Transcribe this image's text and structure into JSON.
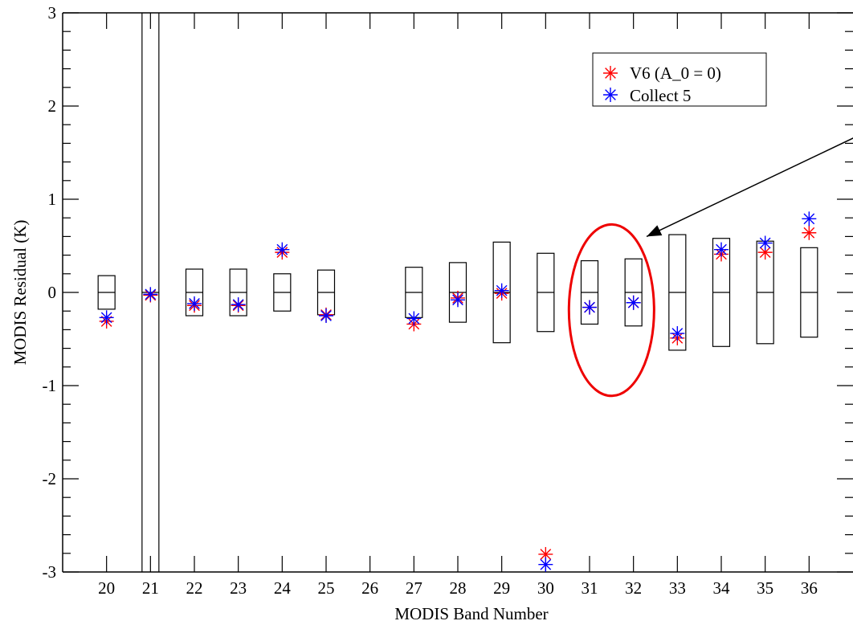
{
  "chart_data": {
    "type": "scatter",
    "xlabel": "MODIS Band Number",
    "ylabel": "MODIS Residual (K)",
    "xlim": [
      19.0,
      37.0
    ],
    "ylim": [
      -3,
      3
    ],
    "x_ticks": [
      "20",
      "21",
      "22",
      "23",
      "24",
      "25",
      "26",
      "27",
      "28",
      "29",
      "30",
      "31",
      "32",
      "33",
      "34",
      "35",
      "36"
    ],
    "y_ticks": [
      "-3",
      "-2",
      "-1",
      "0",
      "1",
      "2",
      "3"
    ],
    "legend_position": "top-right",
    "colors": {
      "v6": "#ff0000",
      "c5": "#0000ff",
      "highlight": "#ee0000",
      "frame": "#000000"
    },
    "series": [
      {
        "name": "V6 (A_0 = 0)",
        "marker": "asterisk",
        "points": [
          {
            "x": 20,
            "y": -0.31
          },
          {
            "x": 21,
            "y": -0.03
          },
          {
            "x": 22,
            "y": -0.14
          },
          {
            "x": 23,
            "y": -0.14
          },
          {
            "x": 24,
            "y": 0.43
          },
          {
            "x": 25,
            "y": -0.24
          },
          {
            "x": 27,
            "y": -0.34
          },
          {
            "x": 28,
            "y": -0.06
          },
          {
            "x": 29,
            "y": -0.01
          },
          {
            "x": 30,
            "y": -2.81
          },
          {
            "x": 31,
            "y": -0.16
          },
          {
            "x": 32,
            "y": -0.11
          },
          {
            "x": 33,
            "y": -0.49
          },
          {
            "x": 34,
            "y": 0.41
          },
          {
            "x": 35,
            "y": 0.43
          },
          {
            "x": 36,
            "y": 0.64
          }
        ]
      },
      {
        "name": "Collect 5",
        "marker": "asterisk",
        "points": [
          {
            "x": 20,
            "y": -0.27
          },
          {
            "x": 21,
            "y": -0.02
          },
          {
            "x": 22,
            "y": -0.12
          },
          {
            "x": 23,
            "y": -0.13
          },
          {
            "x": 24,
            "y": 0.46
          },
          {
            "x": 25,
            "y": -0.25
          },
          {
            "x": 27,
            "y": -0.28
          },
          {
            "x": 28,
            "y": -0.08
          },
          {
            "x": 29,
            "y": 0.02
          },
          {
            "x": 30,
            "y": -2.92
          },
          {
            "x": 31,
            "y": -0.16
          },
          {
            "x": 32,
            "y": -0.11
          },
          {
            "x": 33,
            "y": -0.44
          },
          {
            "x": 34,
            "y": 0.46
          },
          {
            "x": 35,
            "y": 0.53
          },
          {
            "x": 36,
            "y": 0.79
          }
        ]
      }
    ],
    "uncertainty_boxes": [
      {
        "x": 20,
        "half_height": 0.18
      },
      {
        "x": 21,
        "half_height": 5.0
      },
      {
        "x": 22,
        "half_height": 0.25
      },
      {
        "x": 23,
        "half_height": 0.25
      },
      {
        "x": 24,
        "half_height": 0.2
      },
      {
        "x": 25,
        "half_height": 0.24
      },
      {
        "x": 27,
        "half_height": 0.27
      },
      {
        "x": 28,
        "half_height": 0.32
      },
      {
        "x": 29,
        "half_height": 0.54
      },
      {
        "x": 30,
        "half_height": 0.42
      },
      {
        "x": 31,
        "half_height": 0.34
      },
      {
        "x": 32,
        "half_height": 0.36
      },
      {
        "x": 33,
        "half_height": 0.62
      },
      {
        "x": 34,
        "half_height": 0.58
      },
      {
        "x": 35,
        "half_height": 0.55
      },
      {
        "x": 36,
        "half_height": 0.48
      }
    ],
    "highlight": {
      "shape": "ellipse",
      "x_center": 31.5,
      "y_center": -0.19,
      "x_radius": 0.97,
      "y_radius": 0.92
    },
    "annotation_arrow": {
      "from": {
        "x": 37.2,
        "y": 1.7
      },
      "to": {
        "x": 32.3,
        "y": 0.6
      }
    }
  }
}
